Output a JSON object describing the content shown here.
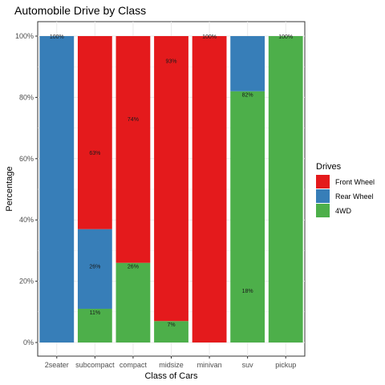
{
  "chart_data": {
    "type": "bar",
    "stacked": true,
    "title": "Automobile Drive by Class",
    "xlabel": "Class of Cars",
    "ylabel": "Percentage",
    "ylim": [
      0,
      100
    ],
    "y_ticks": [
      "0%",
      "20%",
      "40%",
      "60%",
      "80%",
      "100%"
    ],
    "categories": [
      "2seater",
      "subcompact",
      "compact",
      "midsize",
      "minivan",
      "suv",
      "pickup"
    ],
    "series": [
      {
        "name": "4WD",
        "color": "#4daf4a",
        "values": [
          0,
          11,
          26,
          7,
          0,
          82,
          100
        ]
      },
      {
        "name": "Rear Wheel",
        "color": "#377eb8",
        "values": [
          100,
          26,
          0,
          0,
          0,
          18,
          0
        ]
      },
      {
        "name": "Front Wheel",
        "color": "#e41a1c",
        "values": [
          0,
          63,
          74,
          93,
          100,
          0,
          0
        ]
      }
    ],
    "data_labels": [
      {
        "category": "2seater",
        "series": "Rear Wheel",
        "text": "100%",
        "y": 100
      },
      {
        "category": "subcompact",
        "series": "Front Wheel",
        "text": "63%",
        "y": 62
      },
      {
        "category": "subcompact",
        "series": "Rear Wheel",
        "text": "26%",
        "y": 25
      },
      {
        "category": "subcompact",
        "series": "4WD",
        "text": "11%",
        "y": 10
      },
      {
        "category": "compact",
        "series": "Front Wheel",
        "text": "74%",
        "y": 73
      },
      {
        "category": "compact",
        "series": "4WD",
        "text": "26%",
        "y": 25
      },
      {
        "category": "midsize",
        "series": "Front Wheel",
        "text": "93%",
        "y": 92
      },
      {
        "category": "midsize",
        "series": "4WD",
        "text": "7%",
        "y": 6
      },
      {
        "category": "minivan",
        "series": "Front Wheel",
        "text": "100%",
        "y": 100
      },
      {
        "category": "suv",
        "series": "4WD",
        "text": "82%",
        "y": 81
      },
      {
        "category": "suv",
        "series": "Rear Wheel",
        "text": "18%",
        "y": 17
      },
      {
        "category": "pickup",
        "series": "4WD",
        "text": "100%",
        "y": 100
      }
    ],
    "legend": {
      "title": "Drives",
      "position": "right",
      "items": [
        {
          "label": "Front Wheel",
          "color": "#e41a1c"
        },
        {
          "label": "Rear Wheel",
          "color": "#377eb8"
        },
        {
          "label": "4WD",
          "color": "#4daf4a"
        }
      ]
    },
    "grid": true
  }
}
